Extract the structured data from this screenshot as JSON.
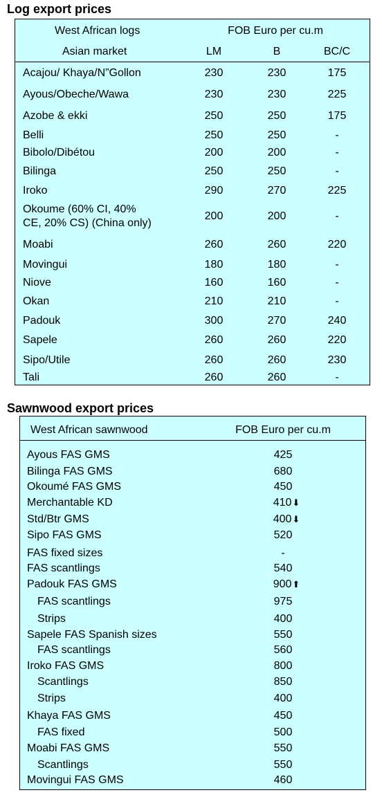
{
  "log": {
    "title": "Log export prices",
    "header": {
      "left_top": "West African logs",
      "left_bottom": "Asian market",
      "right_top": "FOB Euro per cu.m",
      "cols": [
        "LM",
        "B",
        "BC/C"
      ]
    },
    "rows": [
      {
        "name": "Acajou/ Khaya/N”Gollon",
        "lm": "230",
        "b": "230",
        "bc": "175"
      },
      {
        "name": "Ayous/Obeche/Wawa",
        "lm": "230",
        "b": "230",
        "bc": "225"
      },
      {
        "name": "Azobe & ekki",
        "lm": "250",
        "b": "250",
        "bc": "175"
      },
      {
        "name": "Belli",
        "lm": "250",
        "b": "250",
        "bc": "-"
      },
      {
        "name": "Bibolo/Dibétou",
        "lm": "200",
        "b": "200",
        "bc": "-"
      },
      {
        "name": "Bilinga",
        "lm": "250",
        "b": "250",
        "bc": "-"
      },
      {
        "name": "Iroko",
        "lm": "290",
        "b": "270",
        "bc": "225"
      },
      {
        "name": "Okoume (60% CI, 40%",
        "name2": "CE, 20% CS) (China only)",
        "lm": "200",
        "b": "200",
        "bc": "-"
      },
      {
        "name": "Moabi",
        "lm": "260",
        "b": "260",
        "bc": "220"
      },
      {
        "name": "Movingui",
        "lm": "180",
        "b": "180",
        "bc": "-"
      },
      {
        "name": "Niove",
        "lm": "160",
        "b": "160",
        "bc": "-"
      },
      {
        "name": "Okan",
        "lm": "210",
        "b": "210",
        "bc": "-"
      },
      {
        "name": "Padouk",
        "lm": "300",
        "b": "270",
        "bc": "240"
      },
      {
        "name": "Sapele",
        "lm": "260",
        "b": "260",
        "bc": "220"
      },
      {
        "name": "Sipo/Utile",
        "lm": "260",
        "b": "260",
        "bc": "230"
      },
      {
        "name": "Tali",
        "lm": "260",
        "b": "260",
        "bc": "-"
      }
    ]
  },
  "saw": {
    "title": "Sawnwood export prices",
    "header": {
      "left": "West African sawnwood",
      "right": "FOB Euro per cu.m"
    },
    "rows": [
      {
        "name": "Ayous FAS GMS",
        "value": "425",
        "indent": false,
        "arrow": ""
      },
      {
        "name": "Bilinga FAS GMS",
        "value": "680",
        "indent": false,
        "arrow": ""
      },
      {
        "name": "Okoumé FAS GMS",
        "value": "450",
        "indent": false,
        "arrow": ""
      },
      {
        "name": "Merchantable KD",
        "value": "410",
        "indent": false,
        "arrow": "⬇"
      },
      {
        "name": "Std/Btr GMS",
        "value": "400",
        "indent": false,
        "arrow": "⬇"
      },
      {
        "name": "Sipo FAS GMS",
        "value": "520",
        "indent": false,
        "arrow": ""
      },
      {
        "name": "FAS fixed sizes",
        "value": "-",
        "indent": false,
        "arrow": ""
      },
      {
        "name": "FAS scantlings",
        "value": "540",
        "indent": false,
        "arrow": ""
      },
      {
        "name": "Padouk FAS GMS",
        "value": "900",
        "indent": false,
        "arrow": "⬆"
      },
      {
        "name": "FAS scantlings",
        "value": "975",
        "indent": true,
        "arrow": ""
      },
      {
        "name": "Strips",
        "value": "400",
        "indent": true,
        "arrow": ""
      },
      {
        "name": "Sapele FAS Spanish sizes",
        "value": "550",
        "indent": false,
        "arrow": ""
      },
      {
        "name": "FAS scantlings",
        "value": "560",
        "indent": true,
        "arrow": ""
      },
      {
        "name": "Iroko FAS GMS",
        "value": "800",
        "indent": false,
        "arrow": ""
      },
      {
        "name": "Scantlings",
        "value": "850",
        "indent": true,
        "arrow": ""
      },
      {
        "name": "Strips",
        "value": "400",
        "indent": true,
        "arrow": ""
      },
      {
        "name": "Khaya FAS GMS",
        "value": "450",
        "indent": false,
        "arrow": ""
      },
      {
        "name": "FAS fixed",
        "value": "500",
        "indent": true,
        "arrow": ""
      },
      {
        "name": "Moabi FAS GMS",
        "value": "550",
        "indent": false,
        "arrow": ""
      },
      {
        "name": "Scantlings",
        "value": "550",
        "indent": true,
        "arrow": ""
      },
      {
        "name": "Movingui FAS GMS",
        "value": "460",
        "indent": false,
        "arrow": ""
      }
    ]
  }
}
